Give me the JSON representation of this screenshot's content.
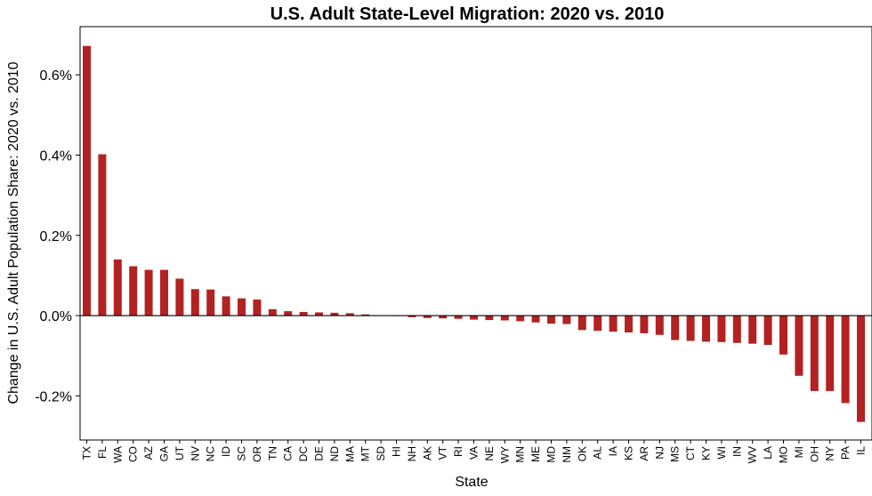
{
  "chart_data": {
    "type": "bar",
    "title": "U.S. Adult State-Level Migration: 2020 vs. 2010",
    "xlabel": "State",
    "ylabel": "Change in U.S. Adult Population Share: 2020 vs. 2010",
    "ylim": [
      -0.31,
      0.72
    ],
    "yticks": [
      -0.2,
      0.0,
      0.2,
      0.4,
      0.6
    ],
    "ytick_labels": [
      "-0.2%",
      "0.0%",
      "0.2%",
      "0.4%",
      "0.6%"
    ],
    "bar_color": "#b22222",
    "zero_line": true,
    "grid": false,
    "categories": [
      "TX",
      "FL",
      "WA",
      "CO",
      "AZ",
      "GA",
      "UT",
      "NV",
      "NC",
      "ID",
      "SC",
      "OR",
      "TN",
      "CA",
      "DC",
      "DE",
      "ND",
      "MA",
      "MT",
      "SD",
      "HI",
      "NH",
      "AK",
      "VT",
      "RI",
      "VA",
      "NE",
      "WY",
      "MN",
      "ME",
      "MD",
      "NM",
      "OK",
      "AL",
      "IA",
      "KS",
      "AR",
      "NJ",
      "MS",
      "CT",
      "KY",
      "WI",
      "IN",
      "WV",
      "LA",
      "MO",
      "MI",
      "OH",
      "NY",
      "PA",
      "IL"
    ],
    "values": [
      0.672,
      0.402,
      0.14,
      0.123,
      0.114,
      0.114,
      0.092,
      0.066,
      0.065,
      0.048,
      0.043,
      0.04,
      0.016,
      0.011,
      0.009,
      0.008,
      0.007,
      0.006,
      0.003,
      0.001,
      -0.001,
      -0.004,
      -0.006,
      -0.007,
      -0.008,
      -0.01,
      -0.011,
      -0.012,
      -0.014,
      -0.017,
      -0.02,
      -0.021,
      -0.036,
      -0.038,
      -0.04,
      -0.042,
      -0.044,
      -0.048,
      -0.061,
      -0.063,
      -0.065,
      -0.066,
      -0.068,
      -0.07,
      -0.073,
      -0.097,
      -0.15,
      -0.188,
      -0.188,
      -0.218,
      -0.265
    ]
  }
}
